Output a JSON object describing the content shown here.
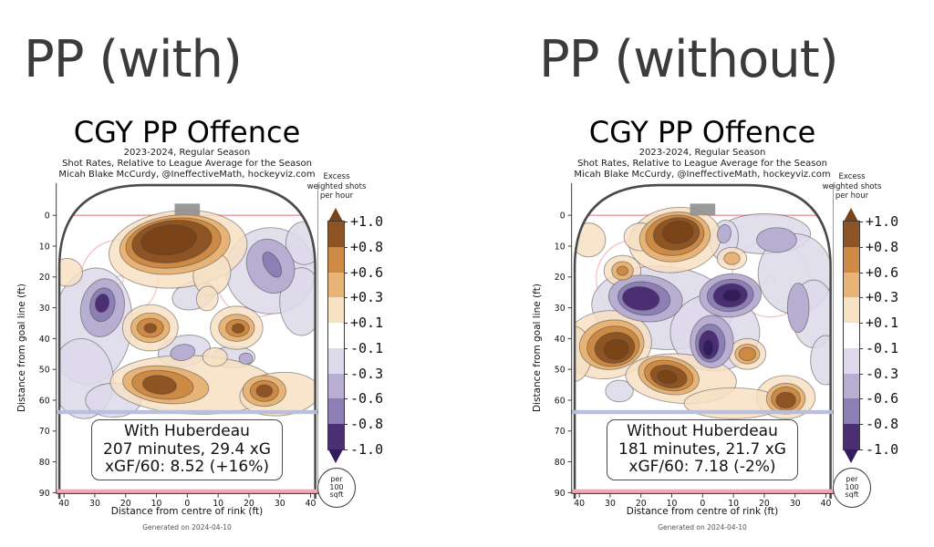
{
  "panels": [
    {
      "header": "PP (with)",
      "title": "CGY PP Offence",
      "subtitle1": "2023-2024, Regular Season",
      "subtitle2": "Shot Rates, Relative to League Average for the Season",
      "subtitle3": "Micah Blake McCurdy, @IneffectiveMath, hockeyviz.com",
      "infobox": {
        "line1": "With Huberdeau",
        "line2": "207 minutes, 29.4 xG",
        "line3": "xGF/60: 8.52 (+16%)"
      }
    },
    {
      "header": "PP (without)",
      "title": "CGY PP Offence",
      "subtitle1": "2023-2024, Regular Season",
      "subtitle2": "Shot Rates, Relative to League Average for the Season",
      "subtitle3": "Micah Blake McCurdy, @IneffectiveMath, hockeyviz.com",
      "infobox": {
        "line1": "Without Huberdeau",
        "line2": "181 minutes, 21.7 xG",
        "line3": "xGF/60: 7.18 (-2%)"
      }
    }
  ],
  "axes": {
    "ylabel": "Distance from goal line (ft)",
    "xlabel": "Distance from centre of rink (ft)",
    "footer": "Generated on 2024-04-10",
    "yticks": [
      0,
      10,
      20,
      30,
      40,
      50,
      60,
      70,
      80,
      90
    ],
    "xtick_values": [
      -40,
      -30,
      -20,
      -10,
      0,
      10,
      20,
      30,
      40
    ],
    "xtick_labels": [
      "40",
      "30",
      "20",
      "10",
      "0",
      "10",
      "20",
      "30",
      "40"
    ]
  },
  "colorbar": {
    "header_lines": [
      "Excess",
      "weighted shots",
      "per hour"
    ],
    "tick_labels": [
      "+1.0",
      "+0.8",
      "+0.6",
      "+0.3",
      "+0.1",
      "-0.1",
      "-0.3",
      "-0.6",
      "-0.8",
      "-1.0"
    ],
    "segment_colors": [
      "o4",
      "o3",
      "o2",
      "o1",
      "white",
      "p1",
      "p2",
      "p3",
      "p4"
    ],
    "arrow_top_color": "o5",
    "arrow_bottom_color": "p5",
    "unit_lines": [
      "per",
      "100",
      "sqft"
    ]
  },
  "palette": {
    "o1": "#F7E1C3",
    "o2": "#E7B376",
    "o3": "#CD8A45",
    "o4": "#8E5423",
    "o5": "#7A4418",
    "p1": "#DDD9EA",
    "p2": "#B7AED2",
    "p3": "#8C7FB6",
    "p4": "#4B2E73",
    "p5": "#321D5C",
    "white": "#FFFFFF",
    "wall": "#4a4a4a",
    "goal_line": "#F1A3AB",
    "faceoff": "#F2C6C6",
    "blue_line": "#B6BEDC",
    "red_line": "#F2A8B0",
    "net": "#8F8F8F",
    "spine": "#333333"
  },
  "chart_data": [
    {
      "type": "heatmap",
      "title": "CGY PP Offence — With Huberdeau",
      "x_axis": {
        "label": "Distance from centre of rink (ft)",
        "range": [
          -42.5,
          42.5
        ]
      },
      "y_axis": {
        "label": "Distance from goal line (ft)",
        "range": [
          0,
          90
        ]
      },
      "colorbar_levels": [
        "+1.0",
        "+0.8",
        "+0.6",
        "+0.3",
        "+0.1",
        "-0.1",
        "-0.3",
        "-0.6",
        "-0.8",
        "-1.0"
      ],
      "units": "Excess weighted shots per hour per 100 sqft",
      "hotspots": [
        {
          "x": -5,
          "y": 8,
          "level": "+1.0",
          "note": "large net-front/left-slot excess"
        },
        {
          "x": -12,
          "y": 36,
          "level": "+1.0",
          "note": "left point"
        },
        {
          "x": 16,
          "y": 37,
          "level": "+1.0",
          "note": "right point"
        },
        {
          "x": -9,
          "y": 55,
          "level": "+1.0",
          "note": "high zone left"
        },
        {
          "x": 25,
          "y": 57,
          "level": "+1.0",
          "note": "high zone right"
        }
      ],
      "coldspots": [
        {
          "x": -27.5,
          "y": 29,
          "level": "-1.0",
          "note": "left circle deficit"
        },
        {
          "x": 27,
          "y": 17,
          "level": "-0.8",
          "note": "right circle deficit"
        },
        {
          "x": -1,
          "y": 44,
          "level": "-0.6",
          "note": "centre deficit"
        }
      ],
      "blobs": [
        [
          "p1",
          -31,
          36,
          13,
          19,
          8
        ],
        [
          "p1",
          -34,
          53,
          10,
          13,
          -5
        ],
        [
          "p1",
          27,
          18,
          14.5,
          14,
          0
        ],
        [
          "p1",
          37,
          28,
          7,
          11,
          0
        ],
        [
          "p1",
          38,
          9,
          6,
          7,
          0
        ],
        [
          "p1",
          2,
          26,
          7,
          4.5,
          -15
        ],
        [
          "p1",
          -1,
          44,
          8.5,
          5,
          -10
        ],
        [
          "p1",
          15,
          46,
          7,
          3.5,
          0
        ],
        [
          "p1",
          -24,
          60,
          9,
          5.5,
          0
        ],
        [
          "o1",
          -3,
          11,
          22.5,
          12.5,
          -6
        ],
        [
          "o1",
          8,
          19,
          6,
          7,
          15
        ],
        [
          "o1",
          6.5,
          27,
          3.5,
          4,
          10
        ],
        [
          "o1",
          -39,
          18.5,
          5,
          4.5,
          0
        ],
        [
          "o1",
          -12,
          36.5,
          9,
          7.5,
          0
        ],
        [
          "o1",
          16,
          36.5,
          8.5,
          7,
          0
        ],
        [
          "o1",
          2,
          55,
          27,
          9.5,
          2
        ],
        [
          "o1",
          30,
          58,
          13,
          7,
          -5
        ],
        [
          "o1",
          9,
          46,
          4,
          3,
          0
        ],
        [
          "p2",
          -27.5,
          30,
          7,
          9.5,
          12
        ],
        [
          "p2",
          27,
          16.5,
          7.5,
          9,
          -25
        ],
        [
          "p2",
          -1.5,
          44.5,
          4,
          2.6,
          -10
        ],
        [
          "p2",
          19,
          46.5,
          2.2,
          1.8,
          0
        ],
        [
          "o2",
          -4,
          9.5,
          18,
          9.5,
          -7
        ],
        [
          "o2",
          -12,
          36.5,
          6.3,
          4.8,
          0
        ],
        [
          "o2",
          16,
          36.5,
          5.8,
          4.4,
          0
        ],
        [
          "o2",
          -7,
          55,
          14,
          6,
          6
        ],
        [
          "o2",
          25,
          57,
          7,
          5,
          0
        ],
        [
          "p3",
          -27.5,
          29,
          4,
          5.5,
          12
        ],
        [
          "p3",
          27.5,
          16,
          2.4,
          4.5,
          -30
        ],
        [
          "o3",
          -4.5,
          9,
          15.5,
          8,
          -7
        ],
        [
          "o3",
          -12,
          36.5,
          4.3,
          3.1,
          0
        ],
        [
          "o3",
          16.3,
          36.6,
          3.8,
          2.8,
          0
        ],
        [
          "o3",
          -8,
          55,
          10,
          4.6,
          6
        ],
        [
          "o3",
          25,
          57,
          4.6,
          3.4,
          0
        ],
        [
          "p4",
          -27.6,
          28.5,
          2.2,
          3,
          12
        ],
        [
          "o4",
          -5,
          8.5,
          13,
          6.8,
          -7
        ],
        [
          "o4",
          -12,
          36.6,
          2,
          1.5,
          0
        ],
        [
          "o4",
          16.5,
          36.7,
          2,
          1.5,
          0
        ],
        [
          "o4",
          -9,
          55,
          5.5,
          3,
          6
        ],
        [
          "o4",
          25,
          57,
          2.6,
          2,
          0
        ],
        [
          "o5",
          -6,
          8,
          9,
          4.8,
          -7
        ]
      ]
    },
    {
      "type": "heatmap",
      "title": "CGY PP Offence — Without Huberdeau",
      "x_axis": {
        "label": "Distance from centre of rink (ft)",
        "range": [
          -42.5,
          42.5
        ]
      },
      "y_axis": {
        "label": "Distance from goal line (ft)",
        "range": [
          0,
          90
        ]
      },
      "colorbar_levels": [
        "+1.0",
        "+0.8",
        "+0.6",
        "+0.3",
        "+0.1",
        "-0.1",
        "-0.3",
        "-0.6",
        "-0.8",
        "-1.0"
      ],
      "units": "Excess weighted shots per hour per 100 sqft",
      "hotspots": [
        {
          "x": -8,
          "y": 6,
          "level": "+1.0",
          "note": "net-front excess"
        },
        {
          "x": -28,
          "y": 43,
          "level": "+1.0",
          "note": "left boards"
        },
        {
          "x": -11,
          "y": 52,
          "level": "+1.0",
          "note": "left point"
        },
        {
          "x": 27,
          "y": 60,
          "level": "+1.0",
          "note": "right point"
        },
        {
          "x": 14.5,
          "y": 45,
          "level": "+0.6",
          "note": "centre-right"
        },
        {
          "x": -26,
          "y": 18,
          "level": "+0.6",
          "note": "left circle"
        },
        {
          "x": 9.5,
          "y": 14,
          "level": "+0.3",
          "note": "right slot dot"
        }
      ],
      "coldspots": [
        {
          "x": -20,
          "y": 27,
          "level": "-1.0",
          "note": "left mid deficit"
        },
        {
          "x": 9,
          "y": 26,
          "level": "-1.0",
          "note": "right mid deficit"
        },
        {
          "x": 2,
          "y": 42,
          "level": "-1.0",
          "note": "centre-high deficit"
        },
        {
          "x": 24,
          "y": 8,
          "level": "-0.3",
          "note": "right corner"
        }
      ],
      "blobs": [
        [
          "p1",
          20,
          6,
          15,
          6.5,
          0
        ],
        [
          "p1",
          30,
          19,
          12,
          13,
          0
        ],
        [
          "p1",
          36,
          32,
          7,
          11,
          0
        ],
        [
          "p1",
          7,
          8,
          4.5,
          6.5,
          10
        ],
        [
          "p1",
          -13,
          30,
          23,
          13.5,
          4
        ],
        [
          "p1",
          4,
          38,
          14.5,
          12.5,
          0
        ],
        [
          "p1",
          -27,
          57,
          4.5,
          3.5,
          0
        ],
        [
          "p1",
          40,
          47,
          5,
          8,
          0
        ],
        [
          "o1",
          -9,
          8,
          15,
          10.5,
          -8
        ],
        [
          "o1",
          -20,
          7,
          5.5,
          4.5,
          0
        ],
        [
          "o1",
          -37,
          8,
          5.5,
          5.5,
          0
        ],
        [
          "o1",
          -26,
          18,
          6,
          5,
          0
        ],
        [
          "o1",
          9.5,
          14,
          4.8,
          3.6,
          0
        ],
        [
          "o1",
          -31,
          42,
          14.5,
          11,
          -8
        ],
        [
          "o1",
          -42,
          45,
          6,
          9,
          0
        ],
        [
          "o1",
          -7,
          53,
          18,
          8,
          4
        ],
        [
          "o1",
          14.5,
          45,
          6,
          5,
          0
        ],
        [
          "o1",
          27,
          59,
          9.5,
          7,
          0
        ],
        [
          "o1",
          10,
          61,
          16,
          5,
          0
        ],
        [
          "p2",
          24,
          8,
          6.5,
          4,
          0
        ],
        [
          "p2",
          7,
          6,
          2.2,
          3,
          10
        ],
        [
          "p2",
          31,
          30,
          3.5,
          8,
          0
        ],
        [
          "p2",
          -18.5,
          27,
          12,
          7.5,
          6
        ],
        [
          "p2",
          9,
          26,
          10,
          7,
          -5
        ],
        [
          "p2",
          3,
          41,
          7,
          8.5,
          0
        ],
        [
          "o2",
          -9,
          7,
          11.5,
          8,
          -8
        ],
        [
          "o2",
          -26,
          18,
          3.5,
          3,
          0
        ],
        [
          "o2",
          9.5,
          14,
          2.6,
          2,
          0
        ],
        [
          "o2",
          -29.5,
          42,
          10.5,
          8,
          -8
        ],
        [
          "o2",
          -11,
          52,
          10,
          6,
          12
        ],
        [
          "o2",
          14.5,
          45,
          4,
          3.2,
          0
        ],
        [
          "o2",
          27,
          59.5,
          6.3,
          5,
          0
        ],
        [
          "p3",
          -19,
          27,
          8.5,
          5.4,
          6
        ],
        [
          "p3",
          9,
          26,
          7.5,
          5.2,
          -5
        ],
        [
          "p3",
          2.5,
          41.5,
          4.8,
          6.2,
          0
        ],
        [
          "o3",
          -9,
          6.5,
          9.5,
          6.5,
          -8
        ],
        [
          "o3",
          -26,
          18,
          1.8,
          1.5,
          0
        ],
        [
          "o3",
          -29,
          42.5,
          8.5,
          6.5,
          -8
        ],
        [
          "o3",
          -11,
          52,
          8,
          4.8,
          12
        ],
        [
          "o3",
          14.5,
          45,
          2.7,
          2.2,
          0
        ],
        [
          "o3",
          27,
          59.5,
          4.7,
          3.8,
          0
        ],
        [
          "p4",
          -20,
          27,
          6,
          3.8,
          6
        ],
        [
          "p4",
          9,
          26,
          5.5,
          3.8,
          -5
        ],
        [
          "p4",
          2,
          42,
          3.2,
          4.6,
          0
        ],
        [
          "o4",
          -8.5,
          6,
          7.5,
          5.2,
          -8
        ],
        [
          "o4",
          -28.5,
          43,
          6.5,
          5,
          -8
        ],
        [
          "o4",
          -11,
          52.3,
          6,
          3.6,
          12
        ],
        [
          "o4",
          27,
          60,
          3.2,
          2.6,
          0
        ],
        [
          "p5",
          9.5,
          26,
          3,
          2,
          -5
        ],
        [
          "p5",
          1.8,
          43,
          1.6,
          2.6,
          0
        ],
        [
          "o5",
          -8,
          5.5,
          5,
          3.6,
          -8
        ],
        [
          "o5",
          -28,
          43.5,
          4,
          3.2,
          -8
        ],
        [
          "o5",
          -11.5,
          52.5,
          3.2,
          2.1,
          12
        ]
      ]
    }
  ]
}
